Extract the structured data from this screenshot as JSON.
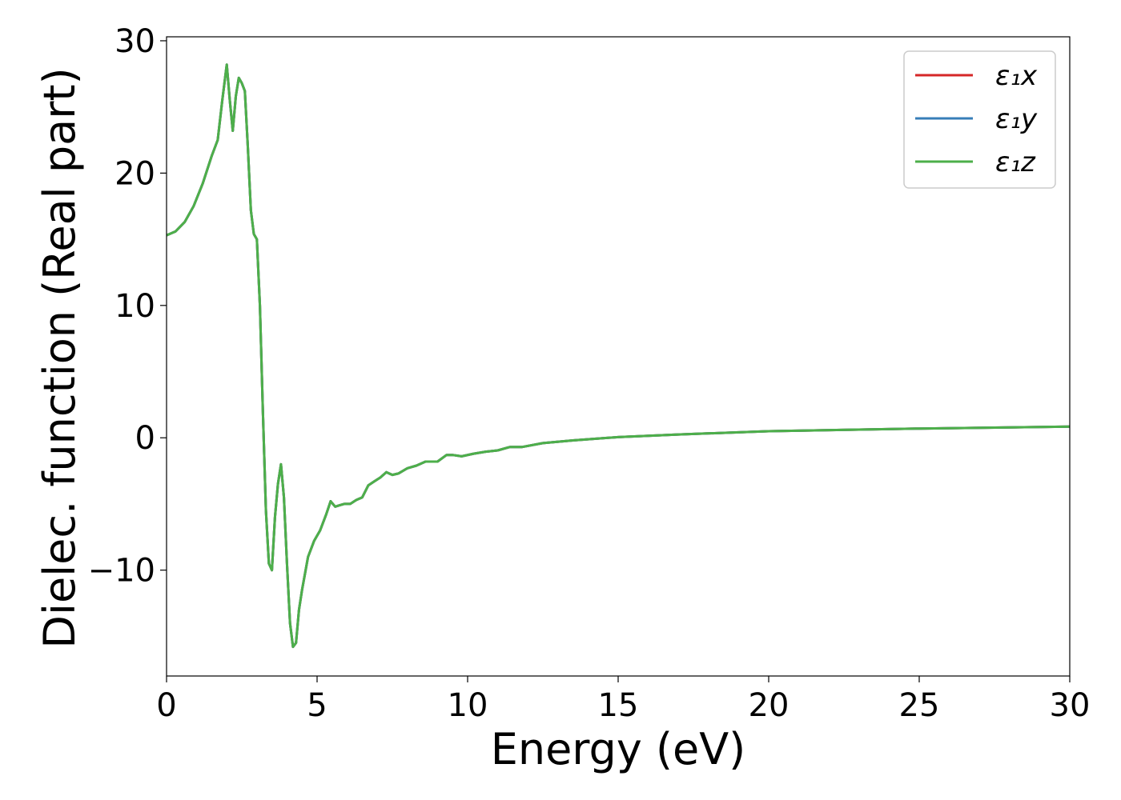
{
  "chart_data": {
    "type": "line",
    "xlabel": "Energy (eV)",
    "ylabel": "Dielec. function (Real part)",
    "xlim": [
      0,
      30
    ],
    "ylim": [
      -18,
      30.3
    ],
    "xticks": [
      0,
      5,
      10,
      15,
      20,
      25,
      30
    ],
    "yticks": [
      -10,
      0,
      10,
      20,
      30
    ],
    "xtick_labels": [
      "0",
      "5",
      "10",
      "15",
      "20",
      "25",
      "30"
    ],
    "ytick_labels": [
      "−10",
      "0",
      "10",
      "20",
      "30"
    ],
    "grid": false,
    "legend": "top-right",
    "x": [
      0,
      0.3,
      0.6,
      0.9,
      1.2,
      1.5,
      1.7,
      1.85,
      2.0,
      2.1,
      2.2,
      2.3,
      2.4,
      2.5,
      2.6,
      2.7,
      2.8,
      2.9,
      3.0,
      3.1,
      3.2,
      3.3,
      3.4,
      3.5,
      3.6,
      3.7,
      3.8,
      3.9,
      4.0,
      4.1,
      4.2,
      4.3,
      4.4,
      4.5,
      4.7,
      4.9,
      5.1,
      5.3,
      5.45,
      5.6,
      5.75,
      5.9,
      6.1,
      6.3,
      6.5,
      6.7,
      6.9,
      7.1,
      7.3,
      7.5,
      7.7,
      8.0,
      8.3,
      8.6,
      9.0,
      9.3,
      9.5,
      9.8,
      10.2,
      10.6,
      11.0,
      11.4,
      11.8,
      12.5,
      13.5,
      15.0,
      17.0,
      20.0,
      25.0,
      30.0
    ],
    "series": [
      {
        "name": "ε₁x",
        "color": "#d62728",
        "values": [
          15.3,
          15.6,
          16.3,
          17.5,
          19.2,
          21.3,
          22.5,
          25.5,
          28.2,
          25.5,
          23.2,
          25.8,
          27.2,
          26.8,
          26.2,
          22.0,
          17.2,
          15.4,
          15.0,
          10.0,
          2.0,
          -5.5,
          -9.5,
          -10.0,
          -6.0,
          -3.5,
          -2.0,
          -4.5,
          -9.5,
          -14.0,
          -15.8,
          -15.5,
          -13.0,
          -11.5,
          -9.0,
          -7.8,
          -7.0,
          -5.8,
          -4.8,
          -5.2,
          -5.1,
          -5.0,
          -5.0,
          -4.7,
          -4.5,
          -3.6,
          -3.3,
          -3.0,
          -2.6,
          -2.8,
          -2.7,
          -2.3,
          -2.1,
          -1.8,
          -1.8,
          -1.3,
          -1.3,
          -1.4,
          -1.2,
          -1.05,
          -0.95,
          -0.7,
          -0.7,
          -0.4,
          -0.2,
          0.05,
          0.25,
          0.5,
          0.7,
          0.85
        ]
      },
      {
        "name": "ε₁y",
        "color": "#377eb8",
        "values": [
          15.3,
          15.6,
          16.3,
          17.5,
          19.2,
          21.3,
          22.5,
          25.5,
          28.2,
          25.5,
          23.2,
          25.8,
          27.2,
          26.8,
          26.2,
          22.0,
          17.2,
          15.4,
          15.0,
          10.0,
          2.0,
          -5.5,
          -9.5,
          -10.0,
          -6.0,
          -3.5,
          -2.0,
          -4.5,
          -9.5,
          -14.0,
          -15.8,
          -15.5,
          -13.0,
          -11.5,
          -9.0,
          -7.8,
          -7.0,
          -5.8,
          -4.8,
          -5.2,
          -5.1,
          -5.0,
          -5.0,
          -4.7,
          -4.5,
          -3.6,
          -3.3,
          -3.0,
          -2.6,
          -2.8,
          -2.7,
          -2.3,
          -2.1,
          -1.8,
          -1.8,
          -1.3,
          -1.3,
          -1.4,
          -1.2,
          -1.05,
          -0.95,
          -0.7,
          -0.7,
          -0.4,
          -0.2,
          0.05,
          0.25,
          0.5,
          0.7,
          0.85
        ]
      },
      {
        "name": "ε₁z",
        "color": "#4daf4a",
        "values": [
          15.3,
          15.6,
          16.3,
          17.5,
          19.2,
          21.3,
          22.5,
          25.5,
          28.2,
          25.5,
          23.2,
          25.8,
          27.2,
          26.8,
          26.2,
          22.0,
          17.2,
          15.4,
          15.0,
          10.0,
          2.0,
          -5.5,
          -9.5,
          -10.0,
          -6.0,
          -3.5,
          -2.0,
          -4.5,
          -9.5,
          -14.0,
          -15.8,
          -15.5,
          -13.0,
          -11.5,
          -9.0,
          -7.8,
          -7.0,
          -5.8,
          -4.8,
          -5.2,
          -5.1,
          -5.0,
          -5.0,
          -4.7,
          -4.5,
          -3.6,
          -3.3,
          -3.0,
          -2.6,
          -2.8,
          -2.7,
          -2.3,
          -2.1,
          -1.8,
          -1.8,
          -1.3,
          -1.3,
          -1.4,
          -1.2,
          -1.05,
          -0.95,
          -0.7,
          -0.7,
          -0.4,
          -0.2,
          0.05,
          0.25,
          0.5,
          0.7,
          0.85
        ]
      }
    ]
  }
}
